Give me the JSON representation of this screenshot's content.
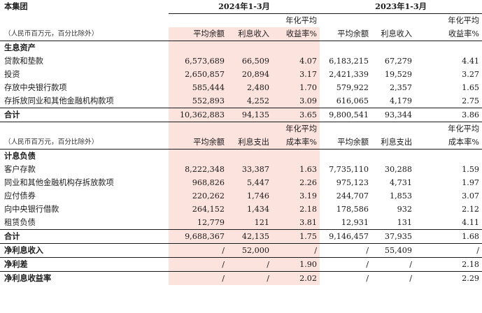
{
  "title": "本集团",
  "period_2024": "2024年1-3月",
  "period_2023": "2023年1-3月",
  "unit_note": "（人民币百万元，百分比除外）",
  "assets_header": {
    "avg_balance": "平均余额",
    "interest": "利息收入",
    "rate_line1": "年化平均",
    "rate_line2": "收益率%"
  },
  "assets_section": "生息资产",
  "assets_rows": [
    {
      "label": "贷款和垫款",
      "a24": "6,573,689",
      "i24": "66,509",
      "r24": "4.07",
      "a23": "6,183,215",
      "i23": "67,279",
      "r23": "4.41"
    },
    {
      "label": "投资",
      "a24": "2,650,857",
      "i24": "20,894",
      "r24": "3.17",
      "a23": "2,421,339",
      "i23": "19,529",
      "r23": "3.27"
    },
    {
      "label": "存放中央银行款项",
      "a24": "585,444",
      "i24": "2,480",
      "r24": "1.70",
      "a23": "579,922",
      "i23": "2,357",
      "r23": "1.65"
    },
    {
      "label": "存拆放同业和其他金融机构款项",
      "a24": "552,893",
      "i24": "4,252",
      "r24": "3.09",
      "a23": "616,065",
      "i23": "4,179",
      "r23": "2.75"
    }
  ],
  "assets_total": {
    "label": "合计",
    "a24": "10,362,883",
    "i24": "94,135",
    "r24": "3.65",
    "a23": "9,800,541",
    "i23": "93,344",
    "r23": "3.86"
  },
  "liab_header": {
    "avg_balance": "平均余额",
    "interest": "利息支出",
    "rate_line1": "年化平均",
    "rate_line2": "成本率%"
  },
  "liab_section": "计息负债",
  "liab_rows": [
    {
      "label": "客户存款",
      "a24": "8,222,348",
      "i24": "33,387",
      "r24": "1.63",
      "a23": "7,735,110",
      "i23": "30,288",
      "r23": "1.59"
    },
    {
      "label": "同业和其他金融机构存拆放款项",
      "a24": "968,826",
      "i24": "5,447",
      "r24": "2.26",
      "a23": "975,123",
      "i23": "4,731",
      "r23": "1.97"
    },
    {
      "label": "应付债券",
      "a24": "220,262",
      "i24": "1,746",
      "r24": "3.19",
      "a23": "244,707",
      "i23": "1,853",
      "r23": "3.07"
    },
    {
      "label": "向中央银行借款",
      "a24": "264,152",
      "i24": "1,434",
      "r24": "2.18",
      "a23": "178,586",
      "i23": "932",
      "r23": "2.12"
    },
    {
      "label": "租赁负债",
      "a24": "12,779",
      "i24": "121",
      "r24": "3.81",
      "a23": "12,931",
      "i23": "131",
      "r23": "4.11"
    }
  ],
  "liab_total": {
    "label": "合计",
    "a24": "9,688,367",
    "i24": "42,135",
    "r24": "1.75",
    "a23": "9,146,457",
    "i23": "37,935",
    "r23": "1.68"
  },
  "summary_rows": [
    {
      "label": "净利息收入",
      "a24": "/",
      "i24": "52,000",
      "r24": "/",
      "a23": "/",
      "i23": "55,409",
      "r23": "/"
    },
    {
      "label": "净利差",
      "a24": "/",
      "i24": "/",
      "r24": "1.90",
      "a23": "/",
      "i23": "/",
      "r23": "2.18"
    },
    {
      "label": "净利息收益率",
      "a24": "/",
      "i24": "/",
      "r24": "2.02",
      "a23": "/",
      "i23": "/",
      "r23": "2.29"
    }
  ]
}
